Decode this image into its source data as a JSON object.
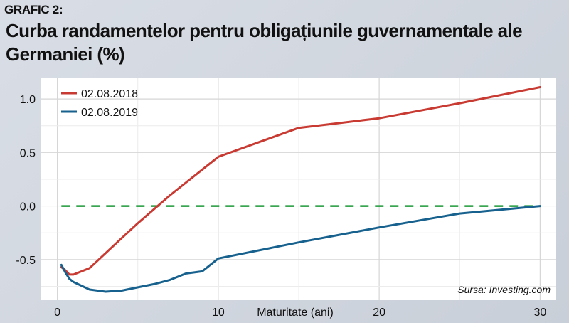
{
  "figure_label": "GRAFIC 2:",
  "title": "Curba randamentelor pentru obligațiunile guvernamentale ale Germaniei (%)",
  "source": "Sursa: Investing.com",
  "chart_data": {
    "type": "line",
    "xlabel": "Maturitate (ani)",
    "ylabel": "",
    "xlim": [
      -1,
      31
    ],
    "ylim": [
      -0.88,
      1.2
    ],
    "xticks": [
      0,
      10,
      20,
      30
    ],
    "yticks": [
      1.0,
      0.5,
      0.0,
      -0.5
    ],
    "ytick_labels": [
      "1.0",
      "0.5",
      "0.0",
      "-0.5"
    ],
    "grid": true,
    "legend_position": "top-left",
    "series": [
      {
        "name": "02.08.2018",
        "color": "#c83a32",
        "x": [
          0.25,
          0.5,
          0.75,
          1,
          2,
          3,
          4,
          5,
          6,
          7,
          8,
          9,
          10,
          15,
          20,
          25,
          30
        ],
        "y": [
          -0.57,
          -0.6,
          -0.64,
          -0.64,
          -0.58,
          -0.44,
          -0.3,
          -0.16,
          -0.03,
          0.1,
          0.22,
          0.34,
          0.46,
          0.73,
          0.82,
          0.96,
          1.11
        ]
      },
      {
        "name": "02.08.2019",
        "color": "#17618e",
        "x": [
          0.25,
          0.5,
          0.75,
          1,
          2,
          3,
          4,
          5,
          6,
          7,
          8,
          9,
          10,
          15,
          20,
          25,
          30
        ],
        "y": [
          -0.55,
          -0.62,
          -0.68,
          -0.71,
          -0.78,
          -0.8,
          -0.79,
          -0.76,
          -0.73,
          -0.69,
          -0.63,
          -0.61,
          -0.49,
          -0.34,
          -0.2,
          -0.07,
          0.0
        ]
      }
    ],
    "reference_lines": [
      {
        "y": 0.0,
        "color": "#1f9a3a",
        "style": "dashed"
      }
    ]
  }
}
